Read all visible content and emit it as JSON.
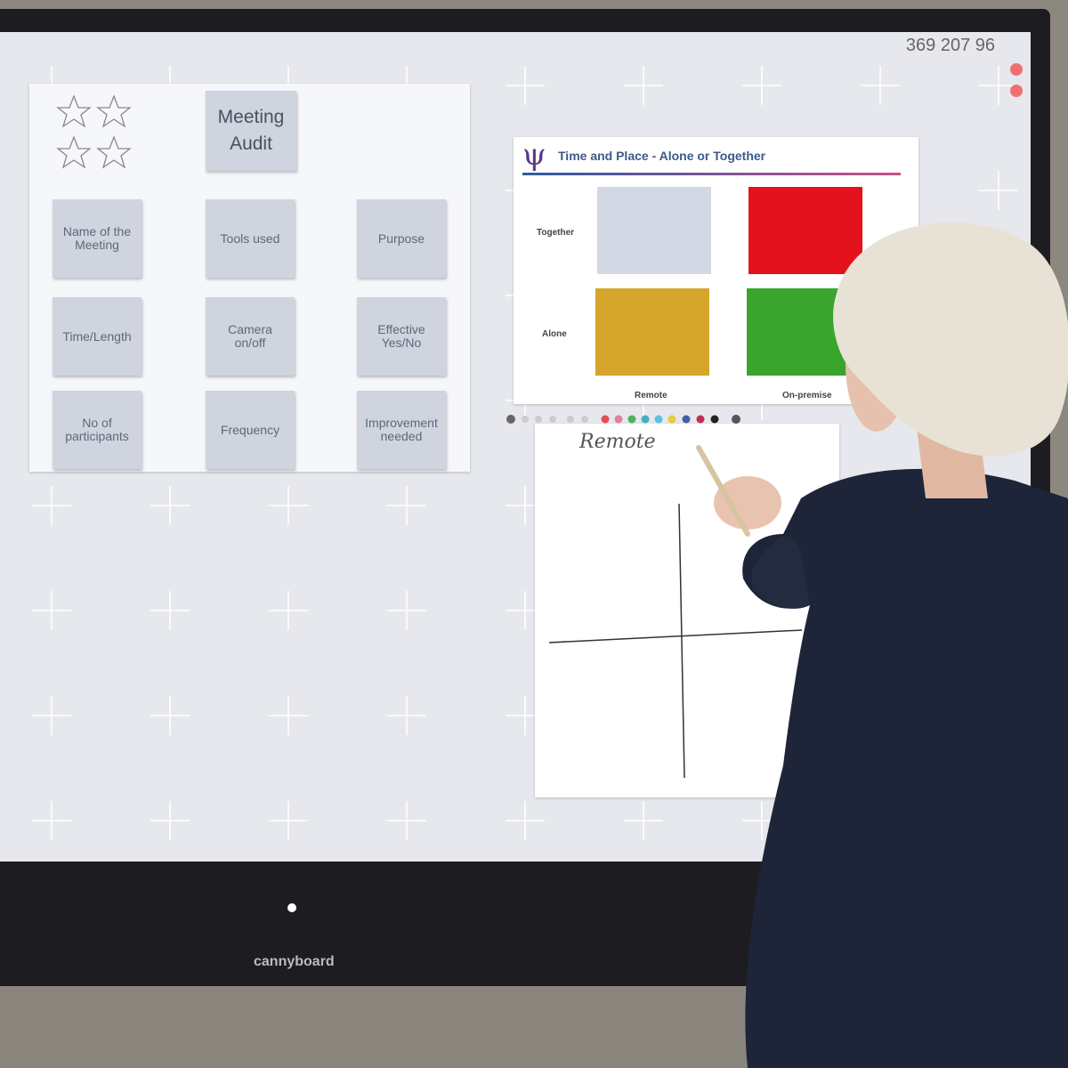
{
  "board": {
    "code": "369 207 96",
    "brand": "cannyboard"
  },
  "audit": {
    "title": "Meeting Audit",
    "cards": [
      "Name of the Meeting",
      "Tools used",
      "Purpose",
      "Time/Length",
      "Camera on/off",
      "Effective Yes/No",
      "No of participants",
      "Frequency",
      "Improvement needed"
    ]
  },
  "diagram": {
    "title": "Time and Place - Alone or Together",
    "rows": [
      "Together",
      "Alone"
    ],
    "columns": [
      "Remote",
      "On-premise"
    ]
  },
  "note": {
    "handwriting": "Remote"
  }
}
